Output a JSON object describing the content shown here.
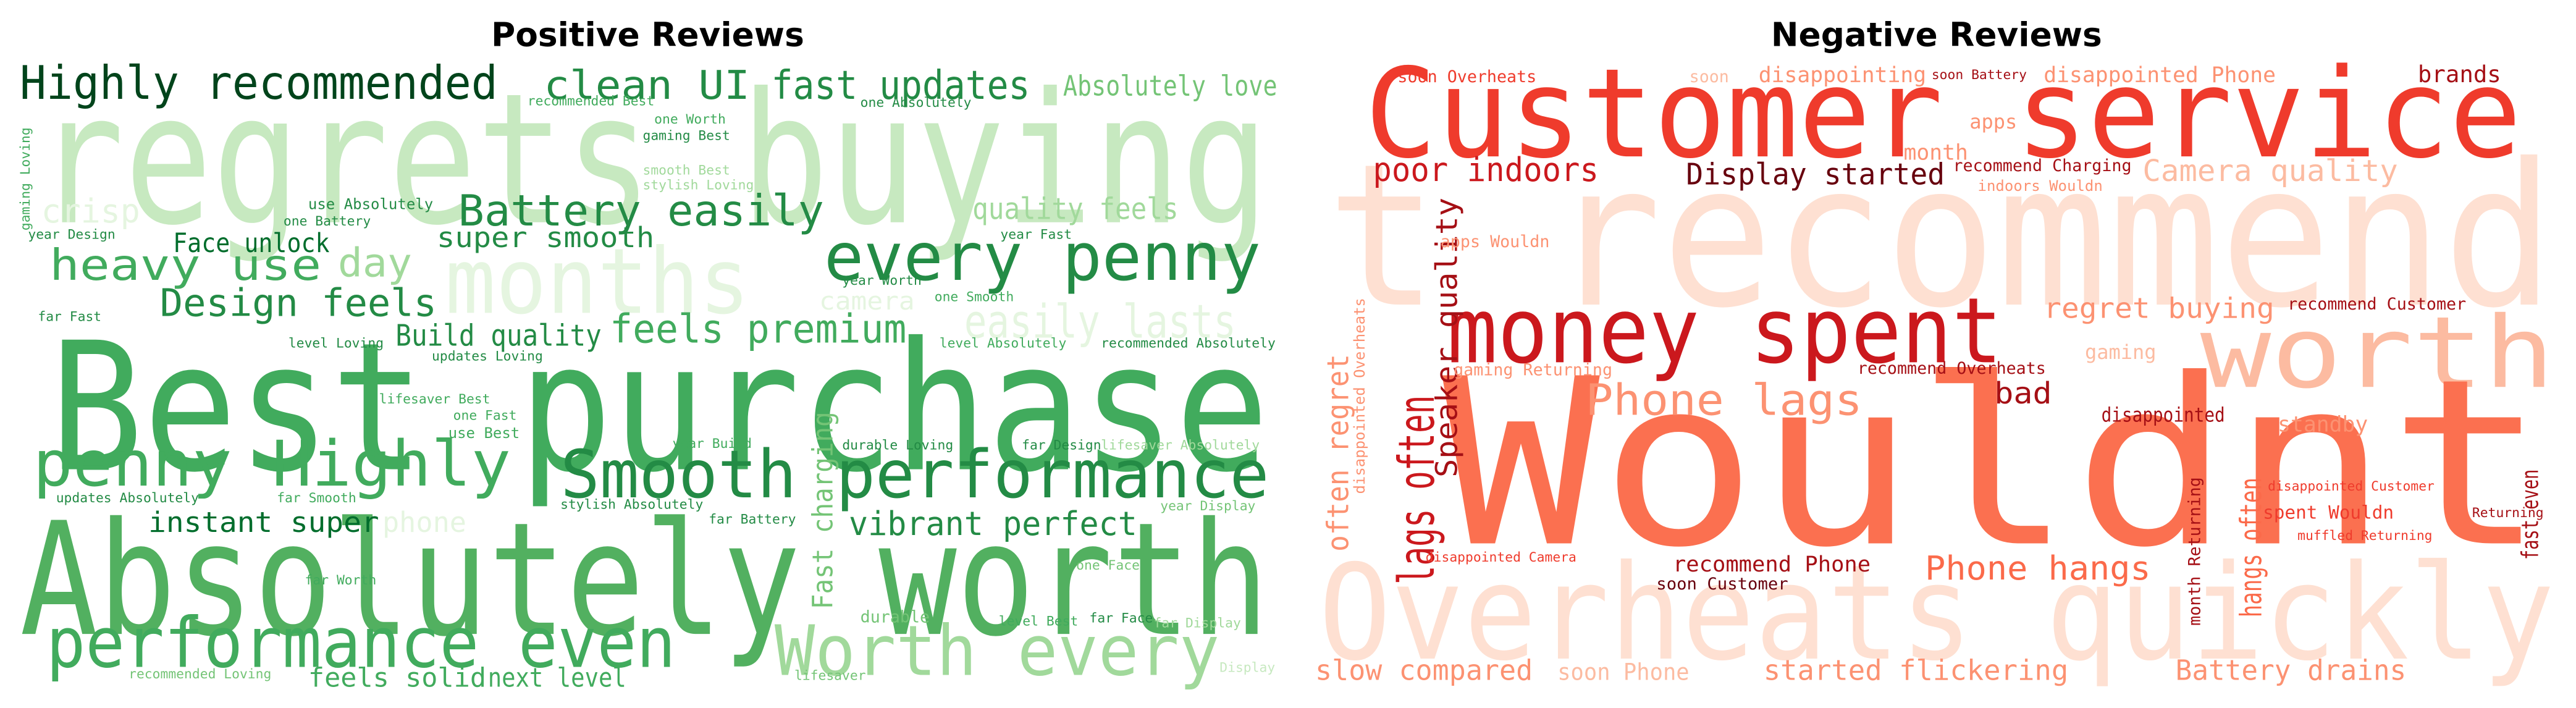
{
  "chart_data": [
    {
      "type": "wordcloud",
      "title": "Positive Reviews",
      "words": [
        {
          "text": "regrets buying",
          "color": "#c7e9c0"
        },
        {
          "text": "Best purchase",
          "color": "#41ab5d"
        },
        {
          "text": "Absolutely worth",
          "color": "#52b060"
        },
        {
          "text": "Highly recommended",
          "color": "#00441b"
        },
        {
          "text": "clean UI",
          "color": "#238b45"
        },
        {
          "text": "fast updates",
          "color": "#238b45"
        },
        {
          "text": "Absolutely love",
          "color": "#74c476"
        },
        {
          "text": "months",
          "color": "#e5f5e0"
        },
        {
          "text": "every penny",
          "color": "#238b45"
        },
        {
          "text": "Battery easily",
          "color": "#238b45"
        },
        {
          "text": "heavy use",
          "color": "#41ab5d"
        },
        {
          "text": "day",
          "color": "#a1d99b"
        },
        {
          "text": "Face unlock",
          "color": "#006d2c"
        },
        {
          "text": "super smooth",
          "color": "#238b45"
        },
        {
          "text": "quality feels",
          "color": "#a1d99b"
        },
        {
          "text": "crisp",
          "color": "#e5f5e0"
        },
        {
          "text": "Design feels",
          "color": "#238b45"
        },
        {
          "text": "easily lasts",
          "color": "#e5f5e0"
        },
        {
          "text": "camera",
          "color": "#e5f5e0"
        },
        {
          "text": "feels premium",
          "color": "#41ab5d"
        },
        {
          "text": "Build quality",
          "color": "#238b45"
        },
        {
          "text": "penny Highly",
          "color": "#41ab5d"
        },
        {
          "text": "Smooth performance",
          "color": "#238b45"
        },
        {
          "text": "vibrant perfect",
          "color": "#238b45"
        },
        {
          "text": "instant super",
          "color": "#006d2c"
        },
        {
          "text": "phone",
          "color": "#e5f5e0"
        },
        {
          "text": "performance even",
          "color": "#41ab5d"
        },
        {
          "text": "Worth every",
          "color": "#a1d99b"
        },
        {
          "text": "feels solid",
          "color": "#41ab5d"
        },
        {
          "text": "next level",
          "color": "#41ab5d"
        },
        {
          "text": "Fast charging",
          "color": "#74c476"
        },
        {
          "text": "use Absolutely",
          "color": "#238b45"
        },
        {
          "text": "one Worth",
          "color": "#41ab5d"
        },
        {
          "text": "one Absolutely",
          "color": "#238b45"
        },
        {
          "text": "recommended Best",
          "color": "#41ab5d"
        },
        {
          "text": "gaming Best",
          "color": "#238b45"
        },
        {
          "text": "smooth Best",
          "color": "#a1d99b"
        },
        {
          "text": "stylish Loving",
          "color": "#a1d99b"
        },
        {
          "text": "one Battery",
          "color": "#238b45"
        },
        {
          "text": "year Design",
          "color": "#238b45"
        },
        {
          "text": "year Fast",
          "color": "#238b45"
        },
        {
          "text": "year Worth",
          "color": "#238b45"
        },
        {
          "text": "one Smooth",
          "color": "#41ab5d"
        },
        {
          "text": "far Fast",
          "color": "#238b45"
        },
        {
          "text": "level Loving",
          "color": "#238b45"
        },
        {
          "text": "updates Loving",
          "color": "#238b45"
        },
        {
          "text": "level Absolutely",
          "color": "#41ab5d"
        },
        {
          "text": "recommended Absolutely",
          "color": "#238b45"
        },
        {
          "text": "lifesaver Best",
          "color": "#41ab5d"
        },
        {
          "text": "one Fast",
          "color": "#41ab5d"
        },
        {
          "text": "use Best",
          "color": "#41ab5d"
        },
        {
          "text": "year Build",
          "color": "#41ab5d"
        },
        {
          "text": "durable Loving",
          "color": "#238b45"
        },
        {
          "text": "far Design",
          "color": "#238b45"
        },
        {
          "text": "lifesaver Absolutely",
          "color": "#a1d99b"
        },
        {
          "text": "updates Absolutely",
          "color": "#238b45"
        },
        {
          "text": "far Smooth",
          "color": "#41ab5d"
        },
        {
          "text": "stylish Absolutely",
          "color": "#238b45"
        },
        {
          "text": "far Battery",
          "color": "#238b45"
        },
        {
          "text": "year Display",
          "color": "#74c476"
        },
        {
          "text": "one Face",
          "color": "#74c476"
        },
        {
          "text": "far Worth",
          "color": "#41ab5d"
        },
        {
          "text": "durable",
          "color": "#74c476"
        },
        {
          "text": "level Best",
          "color": "#41ab5d"
        },
        {
          "text": "far Face",
          "color": "#238b45"
        },
        {
          "text": "far Display",
          "color": "#a1d99b"
        },
        {
          "text": "recommended Loving",
          "color": "#74c476"
        },
        {
          "text": "lifesaver",
          "color": "#74c476"
        },
        {
          "text": "Display",
          "color": "#c7e9c0"
        },
        {
          "text": "gaming Loving",
          "color": "#41ab5d"
        }
      ]
    },
    {
      "type": "wordcloud",
      "title": "Negative Reviews",
      "words": [
        {
          "text": "t recommend",
          "color": "#fee0d2"
        },
        {
          "text": "Customer service",
          "color": "#ef3b2c"
        },
        {
          "text": "money spent",
          "color": "#cb181d"
        },
        {
          "text": "worth",
          "color": "#fcbba1"
        },
        {
          "text": "Wouldnt",
          "color": "#fb7050"
        },
        {
          "text": "Overheats quickly",
          "color": "#fee0d2"
        },
        {
          "text": "poor indoors",
          "color": "#cb181d"
        },
        {
          "text": "Display started",
          "color": "#67000d"
        },
        {
          "text": "Camera quality",
          "color": "#fcbba1"
        },
        {
          "text": "regret buying",
          "color": "#fc9272"
        },
        {
          "text": "Phone lags",
          "color": "#fc9272"
        },
        {
          "text": "bad",
          "color": "#a50f15"
        },
        {
          "text": "disappointed",
          "color": "#a50f15"
        },
        {
          "text": "Phone hangs",
          "color": "#fb6a4a"
        },
        {
          "text": "recommend Phone",
          "color": "#a50f15"
        },
        {
          "text": "soon Customer",
          "color": "#67000d"
        },
        {
          "text": "slow compared",
          "color": "#fc9272"
        },
        {
          "text": "soon Phone",
          "color": "#fcbba1"
        },
        {
          "text": "started flickering",
          "color": "#fc9272"
        },
        {
          "text": "Battery drains",
          "color": "#fc9272"
        },
        {
          "text": "lags often",
          "color": "#cb181d"
        },
        {
          "text": "often regret",
          "color": "#fc9272"
        },
        {
          "text": "Speaker quality",
          "color": "#a50f15"
        },
        {
          "text": "hangs often",
          "color": "#fb6a4a"
        },
        {
          "text": "fast even",
          "color": "#a50f15"
        },
        {
          "text": "brands",
          "color": "#a50f15"
        },
        {
          "text": "disappointing",
          "color": "#fc9272"
        },
        {
          "text": "disappointed Phone",
          "color": "#fc9272"
        },
        {
          "text": "soon Overheats",
          "color": "#ef3b2c"
        },
        {
          "text": "soon",
          "color": "#fcbba1"
        },
        {
          "text": "soon Battery",
          "color": "#a50f15"
        },
        {
          "text": "apps",
          "color": "#fc9272"
        },
        {
          "text": "month",
          "color": "#fc9272"
        },
        {
          "text": "recommend Charging",
          "color": "#a50f15"
        },
        {
          "text": "indoors Wouldn",
          "color": "#fc9272"
        },
        {
          "text": "recommend Customer",
          "color": "#a50f15"
        },
        {
          "text": "gaming",
          "color": "#fcbba1"
        },
        {
          "text": "recommend Overheats",
          "color": "#a50f15"
        },
        {
          "text": "standby",
          "color": "#fc9272"
        },
        {
          "text": "disappointed Customer",
          "color": "#ef3b2c"
        },
        {
          "text": "spent Wouldn",
          "color": "#ef3b2c"
        },
        {
          "text": "Returning",
          "color": "#a50f15"
        },
        {
          "text": "muffled Returning",
          "color": "#ef3b2c"
        },
        {
          "text": "apps Wouldn",
          "color": "#fc9272"
        },
        {
          "text": "gaming Returning",
          "color": "#fc9272"
        },
        {
          "text": "disappointed Camera",
          "color": "#ef3b2c"
        },
        {
          "text": "month Returning",
          "color": "#a50f15"
        },
        {
          "text": "disappointed Overheats",
          "color": "#fc9272"
        }
      ]
    }
  ]
}
